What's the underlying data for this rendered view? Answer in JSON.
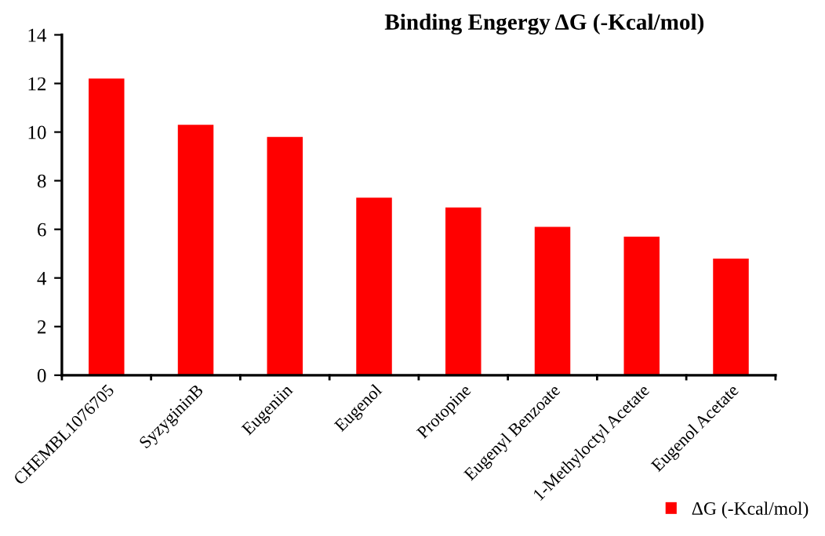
{
  "chart_data": {
    "type": "bar",
    "title": "Binding Engergy ΔG (-Kcal/mol)",
    "categories": [
      "CHEMBL1076705",
      "SyzygininB",
      "Eugeniin",
      "Eugenol",
      "Protopine",
      "Eugenyl Benzoate",
      "1-Methyloctyl Acetate",
      "Eugenol Acetate"
    ],
    "series": [
      {
        "name": "ΔG (-Kcal/mol)",
        "color": "#ff0000",
        "values": [
          12.2,
          10.3,
          9.8,
          7.3,
          6.9,
          6.1,
          5.7,
          4.8
        ]
      }
    ],
    "ylim": [
      0,
      14
    ],
    "yticks": [
      0,
      2,
      4,
      6,
      8,
      10,
      12,
      14
    ],
    "grid": false,
    "legend": "bottom right"
  }
}
